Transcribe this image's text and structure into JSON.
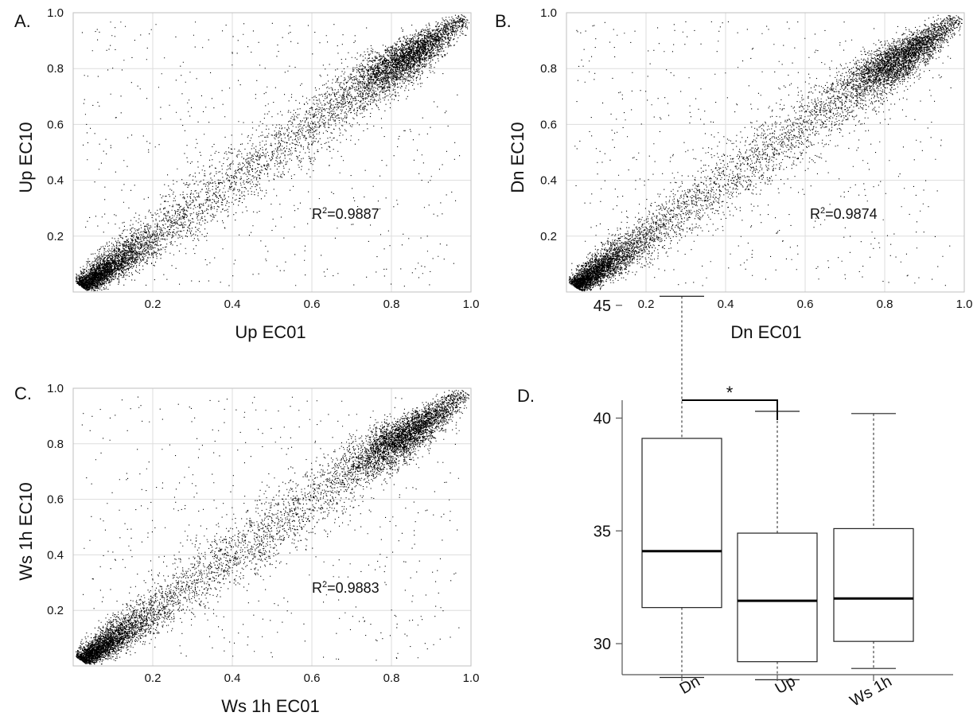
{
  "chart_data": [
    {
      "type": "scatter",
      "panel_label": "A.",
      "xlabel": "Up EC01",
      "ylabel": "Up EC10",
      "xlim": [
        0,
        1.0
      ],
      "ylim": [
        0,
        1.0
      ],
      "xticks": [
        "0.2",
        "0.4",
        "0.6",
        "0.8",
        "1.0"
      ],
      "yticks": [
        "0.2",
        "0.4",
        "0.6",
        "0.8",
        "1.0"
      ],
      "grid": true,
      "r2_prefix": "R",
      "r2_value": "=0.9887",
      "r2": 0.9887,
      "point_color": "#000000",
      "points_description_dense_along_diagonal": true
    },
    {
      "type": "scatter",
      "panel_label": "B.",
      "xlabel": "Dn EC01",
      "ylabel": "Dn EC10",
      "xlim": [
        0,
        1.0
      ],
      "ylim": [
        0,
        1.0
      ],
      "xticks": [
        "0.2",
        "0.4",
        "0.6",
        "0.8",
        "1.0"
      ],
      "yticks": [
        "0.2",
        "0.4",
        "0.6",
        "0.8",
        "1.0"
      ],
      "grid": true,
      "r2_prefix": "R",
      "r2_value": "=0.9874",
      "r2": 0.9874,
      "point_color": "#000000"
    },
    {
      "type": "scatter",
      "panel_label": "C.",
      "xlabel": "Ws 1h EC01",
      "ylabel": "Ws 1h EC10",
      "xlim": [
        0,
        1.0
      ],
      "ylim": [
        0,
        1.0
      ],
      "xticks": [
        "0.2",
        "0.4",
        "0.6",
        "0.8",
        "1.0"
      ],
      "yticks": [
        "0.2",
        "0.4",
        "0.6",
        "0.8",
        "1.0"
      ],
      "grid": true,
      "r2_prefix": "R",
      "r2_value": "=0.9883",
      "r2": 0.9883,
      "point_color": "#000000"
    },
    {
      "type": "box",
      "panel_label": "D.",
      "categories": [
        "Dn",
        "Up",
        "Ws 1h"
      ],
      "yticks": [
        "30",
        "35",
        "40",
        "45"
      ],
      "ylim": [
        28,
        46
      ],
      "boxes": [
        {
          "name": "Dn",
          "min": 28.5,
          "q1": 31.6,
          "median": 34.1,
          "q3": 39.1,
          "max": 45.4
        },
        {
          "name": "Up",
          "min": 28.4,
          "q1": 29.2,
          "median": 31.9,
          "q3": 34.9,
          "max": 40.3
        },
        {
          "name": "Ws 1h",
          "min": 28.9,
          "q1": 30.1,
          "median": 32.0,
          "q3": 35.1,
          "max": 40.2
        }
      ],
      "significance": {
        "from": "Dn",
        "to": "Up",
        "label": "*"
      }
    }
  ]
}
